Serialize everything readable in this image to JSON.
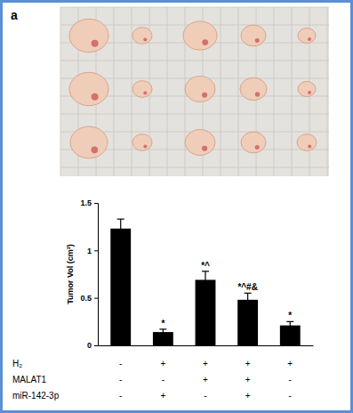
{
  "chart_data": {
    "type": "bar",
    "title": "a",
    "y_label": "Tumor Vol (cm³)",
    "categories": [
      null,
      null,
      null,
      null,
      null
    ],
    "values": [
      1.23,
      0.14,
      0.69,
      0.48,
      0.21
    ],
    "errors": [
      0.1,
      0.03,
      0.09,
      0.07,
      0.04
    ],
    "annotations": [
      null,
      "*",
      "*^",
      "*^#&",
      "*"
    ],
    "conditions": [
      {
        "name": "H₂",
        "values": [
          "-",
          "+",
          "+",
          "+",
          "+"
        ]
      },
      {
        "name": "MALAT1",
        "values": [
          "-",
          "-",
          "+",
          "+",
          "-"
        ]
      },
      {
        "name": "miR-142-3p",
        "values": [
          "-",
          "+",
          "-",
          "+",
          "-"
        ]
      }
    ],
    "color": "#000000",
    "ylim": [
      0,
      1.5
    ],
    "yticks": [
      0,
      0.5,
      1,
      1.5
    ]
  }
}
